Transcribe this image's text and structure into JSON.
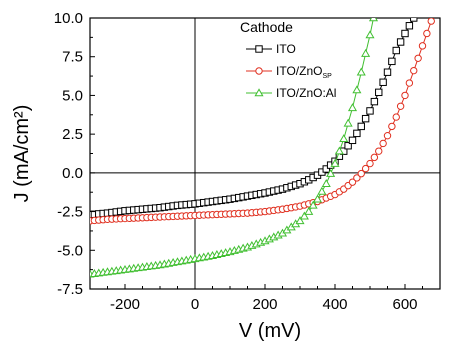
{
  "chart_data": {
    "type": "line",
    "xlabel": "V (mV)",
    "ylabel": "J (mA/cm²)",
    "xlim": [
      -300,
      700
    ],
    "ylim": [
      -7.5,
      10.0
    ],
    "xticks": [
      -200,
      0,
      200,
      400,
      600
    ],
    "yticks": [
      -7.5,
      -5.0,
      -2.5,
      0.0,
      2.5,
      5.0,
      7.5,
      10.0
    ],
    "xtick_labels": [
      "-200",
      "0",
      "200",
      "400",
      "600"
    ],
    "ytick_labels": [
      "-7.5",
      "-5.0",
      "-2.5",
      "0.0",
      "2.5",
      "5.0",
      "7.5",
      "10.0"
    ],
    "grid": false,
    "legend": {
      "title": "Cathode",
      "placement": "top-right"
    },
    "series": [
      {
        "name": "ITO",
        "color": "#000000",
        "marker": "square",
        "x": [
          -300,
          -250,
          -200,
          -150,
          -100,
          -50,
          0,
          50,
          100,
          150,
          200,
          250,
          300,
          325,
          350,
          375,
          400,
          425,
          450,
          475,
          500,
          525,
          550,
          575,
          600,
          625
        ],
        "y": [
          -2.7,
          -2.6,
          -2.45,
          -2.35,
          -2.25,
          -2.1,
          -2.0,
          -1.85,
          -1.7,
          -1.5,
          -1.3,
          -1.05,
          -0.7,
          -0.45,
          -0.15,
          0.25,
          0.75,
          1.4,
          2.1,
          3.0,
          4.0,
          5.2,
          6.5,
          7.9,
          9.0,
          10.0
        ]
      },
      {
        "name": "ITO/ZnO",
        "name_sub": "SP",
        "color": "#e03020",
        "marker": "circle",
        "x": [
          -300,
          -250,
          -200,
          -150,
          -100,
          -50,
          0,
          50,
          100,
          150,
          200,
          250,
          300,
          350,
          400,
          425,
          450,
          475,
          500,
          525,
          550,
          575,
          600,
          625,
          650,
          675
        ],
        "y": [
          -3.1,
          -3.0,
          -2.95,
          -2.9,
          -2.85,
          -2.8,
          -2.75,
          -2.7,
          -2.65,
          -2.6,
          -2.5,
          -2.35,
          -2.15,
          -1.85,
          -1.4,
          -1.05,
          -0.6,
          -0.05,
          0.6,
          1.4,
          2.4,
          3.6,
          5.0,
          6.6,
          8.2,
          9.8
        ]
      },
      {
        "name": "ITO/ZnO:Al",
        "color": "#40bf30",
        "marker": "triangle",
        "x": [
          -300,
          -250,
          -200,
          -150,
          -100,
          -50,
          0,
          50,
          100,
          150,
          200,
          250,
          300,
          325,
          350,
          375,
          400,
          425,
          450,
          475,
          500,
          510
        ],
        "y": [
          -6.55,
          -6.4,
          -6.25,
          -6.1,
          -5.95,
          -5.75,
          -5.55,
          -5.35,
          -5.1,
          -4.8,
          -4.4,
          -3.9,
          -3.1,
          -2.5,
          -1.7,
          -0.7,
          0.6,
          2.2,
          4.2,
          6.5,
          8.9,
          10.0
        ]
      }
    ]
  }
}
